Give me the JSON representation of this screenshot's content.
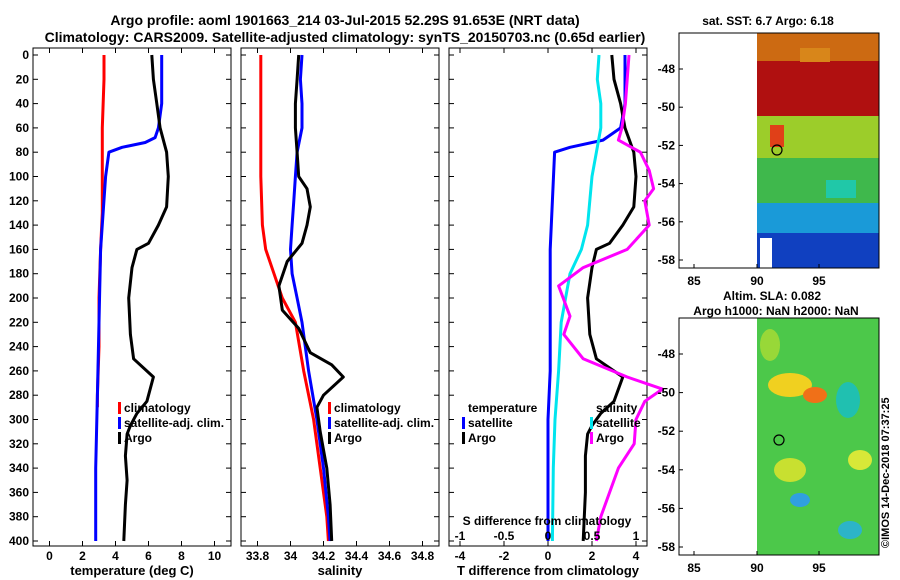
{
  "header": {
    "line1": "Argo profile: aoml 1901663_214 03-Jul-2015 52.29S 91.653E (NRT data)",
    "line2": "Climatology: CARS2009. Satellite-adjusted climatology: synTS_20150703.nc (0.65d earlier)"
  },
  "credit": "©IMOS 14-Dec-2018 07:37:25",
  "colors": {
    "red": "#ff0000",
    "blue": "#0000ff",
    "black": "#000000",
    "cyan": "#00e5ee",
    "magenta": "#ff00ff"
  },
  "chart_data": [
    {
      "type": "line",
      "name": "temperature",
      "xlabel": "temperature (deg C)",
      "xlim": [
        -1,
        11
      ],
      "xticks": [
        "0",
        "2",
        "4",
        "6",
        "8",
        "10"
      ],
      "ylim": [
        0,
        400
      ],
      "yticks": [
        "0",
        "20",
        "40",
        "60",
        "80",
        "100",
        "120",
        "140",
        "160",
        "180",
        "200",
        "220",
        "240",
        "260",
        "280",
        "300",
        "320",
        "340",
        "360",
        "380",
        "400"
      ],
      "legend": [
        "climatology",
        "satellite-adj. clim.",
        "Argo"
      ],
      "series": [
        {
          "name": "climatology",
          "color": "red",
          "points": [
            [
              3.3,
              0
            ],
            [
              3.3,
              20
            ],
            [
              3.2,
              60
            ],
            [
              3.2,
              100
            ],
            [
              3.2,
              130
            ],
            [
              3.1,
              160
            ],
            [
              3.0,
              200
            ],
            [
              3.0,
              240
            ],
            [
              2.9,
              280
            ],
            [
              2.9,
              290
            ]
          ]
        },
        {
          "name": "satellite-adj. clim.",
          "color": "blue",
          "points": [
            [
              6.8,
              0
            ],
            [
              6.8,
              20
            ],
            [
              6.8,
              40
            ],
            [
              6.6,
              60
            ],
            [
              6.4,
              68
            ],
            [
              5.8,
              72
            ],
            [
              4.4,
              76
            ],
            [
              3.6,
              80
            ],
            [
              3.4,
              100
            ],
            [
              3.1,
              160
            ],
            [
              3.0,
              220
            ],
            [
              2.9,
              280
            ],
            [
              2.8,
              340
            ],
            [
              2.8,
              400
            ]
          ]
        },
        {
          "name": "Argo",
          "color": "black",
          "points": [
            [
              6.2,
              0
            ],
            [
              6.3,
              20
            ],
            [
              6.5,
              40
            ],
            [
              6.7,
              60
            ],
            [
              7.1,
              80
            ],
            [
              7.2,
              100
            ],
            [
              7.1,
              125
            ],
            [
              6.6,
              140
            ],
            [
              6.0,
              155
            ],
            [
              5.3,
              160
            ],
            [
              5.0,
              175
            ],
            [
              4.8,
              200
            ],
            [
              4.9,
              230
            ],
            [
              5.1,
              250
            ],
            [
              6.3,
              265
            ],
            [
              5.9,
              285
            ],
            [
              5.3,
              295
            ],
            [
              4.9,
              305
            ],
            [
              4.7,
              312
            ],
            [
              4.6,
              330
            ],
            [
              4.7,
              350
            ],
            [
              4.6,
              370
            ],
            [
              4.5,
              400
            ]
          ]
        }
      ]
    },
    {
      "type": "line",
      "name": "salinity",
      "xlabel": "salinity",
      "xlim": [
        33.7,
        34.9
      ],
      "xticks": [
        "33.8",
        "34",
        "34.2",
        "34.4",
        "34.6",
        "34.8"
      ],
      "ylim": [
        0,
        400
      ],
      "legend": [
        "climatology",
        "satellite-adj. clim.",
        "Argo"
      ],
      "series": [
        {
          "name": "climatology",
          "color": "red",
          "points": [
            [
              33.82,
              0
            ],
            [
              33.82,
              40
            ],
            [
              33.82,
              100
            ],
            [
              33.83,
              140
            ],
            [
              33.85,
              160
            ],
            [
              33.9,
              180
            ],
            [
              33.95,
              200
            ],
            [
              34.03,
              220
            ],
            [
              34.08,
              260
            ],
            [
              34.14,
              300
            ],
            [
              34.18,
              340
            ],
            [
              34.22,
              380
            ],
            [
              34.23,
              400
            ]
          ]
        },
        {
          "name": "satellite-adj. clim.",
          "color": "blue",
          "points": [
            [
              34.07,
              0
            ],
            [
              34.06,
              20
            ],
            [
              34.07,
              40
            ],
            [
              34.07,
              60
            ],
            [
              34.04,
              80
            ],
            [
              34.03,
              100
            ],
            [
              34.02,
              120
            ],
            [
              34.01,
              140
            ],
            [
              34.0,
              160
            ],
            [
              34.01,
              180
            ],
            [
              34.04,
              200
            ],
            [
              34.07,
              220
            ],
            [
              34.11,
              260
            ],
            [
              34.16,
              300
            ],
            [
              34.2,
              340
            ],
            [
              34.23,
              380
            ],
            [
              34.24,
              400
            ]
          ]
        },
        {
          "name": "Argo",
          "color": "black",
          "points": [
            [
              34.05,
              0
            ],
            [
              34.04,
              20
            ],
            [
              34.03,
              40
            ],
            [
              34.03,
              60
            ],
            [
              34.04,
              80
            ],
            [
              34.05,
              100
            ],
            [
              34.1,
              110
            ],
            [
              34.12,
              125
            ],
            [
              34.1,
              140
            ],
            [
              34.07,
              155
            ],
            [
              33.98,
              170
            ],
            [
              33.93,
              190
            ],
            [
              33.95,
              210
            ],
            [
              34.05,
              225
            ],
            [
              34.12,
              245
            ],
            [
              34.25,
              255
            ],
            [
              34.32,
              265
            ],
            [
              34.2,
              280
            ],
            [
              34.16,
              290
            ],
            [
              34.18,
              310
            ],
            [
              34.22,
              340
            ],
            [
              34.24,
              370
            ],
            [
              34.25,
              400
            ]
          ]
        }
      ]
    },
    {
      "type": "line",
      "name": "difference from climatology",
      "xlabel": "T difference from climatology",
      "xlabel_top": "S difference from climatology",
      "xlim": [
        -4.5,
        4.5
      ],
      "xticks": [
        "-4",
        "-2",
        "0",
        "2",
        "4"
      ],
      "xticks_top": [
        "-1",
        "-0.5",
        "0",
        "0.5",
        "1"
      ],
      "ylim": [
        0,
        400
      ],
      "legend_left": [
        "temperature",
        "satellite",
        "Argo"
      ],
      "legend_right": [
        "salinity",
        "satellite",
        "Argo"
      ],
      "series": [
        {
          "name": "T satellite",
          "color": "blue",
          "points": [
            [
              3.5,
              0
            ],
            [
              3.5,
              40
            ],
            [
              3.3,
              60
            ],
            [
              2.5,
              70
            ],
            [
              1.0,
              76
            ],
            [
              0.3,
              80
            ],
            [
              0.2,
              120
            ],
            [
              0.1,
              160
            ],
            [
              0.1,
              200
            ],
            [
              0.1,
              260
            ],
            [
              0.0,
              300
            ],
            [
              0.0,
              340
            ],
            [
              0.0,
              400
            ]
          ]
        },
        {
          "name": "T Argo",
          "color": "black",
          "points": [
            [
              2.9,
              0
            ],
            [
              3.0,
              20
            ],
            [
              3.3,
              40
            ],
            [
              3.5,
              60
            ],
            [
              3.9,
              80
            ],
            [
              4.0,
              100
            ],
            [
              3.9,
              125
            ],
            [
              3.4,
              140
            ],
            [
              2.8,
              155
            ],
            [
              2.2,
              160
            ],
            [
              2.0,
              175
            ],
            [
              1.8,
              200
            ],
            [
              1.9,
              230
            ],
            [
              2.2,
              250
            ],
            [
              3.4,
              265
            ],
            [
              3.0,
              285
            ],
            [
              2.4,
              295
            ],
            [
              2.0,
              305
            ],
            [
              1.8,
              312
            ],
            [
              1.7,
              330
            ],
            [
              1.7,
              360
            ],
            [
              1.6,
              400
            ]
          ]
        },
        {
          "name": "S satellite",
          "color": "cyan",
          "points": [
            [
              0.58,
              0
            ],
            [
              0.56,
              20
            ],
            [
              0.6,
              40
            ],
            [
              0.6,
              60
            ],
            [
              0.55,
              80
            ],
            [
              0.5,
              100
            ],
            [
              0.45,
              140
            ],
            [
              0.38,
              160
            ],
            [
              0.25,
              180
            ],
            [
              0.2,
              200
            ],
            [
              0.15,
              220
            ],
            [
              0.12,
              260
            ],
            [
              0.08,
              300
            ],
            [
              0.06,
              340
            ],
            [
              0.05,
              400
            ]
          ]
        },
        {
          "name": "S Argo",
          "color": "magenta",
          "points": [
            [
              0.92,
              0
            ],
            [
              0.9,
              20
            ],
            [
              0.88,
              40
            ],
            [
              0.84,
              60
            ],
            [
              0.8,
              70
            ],
            [
              1.05,
              80
            ],
            [
              1.15,
              95
            ],
            [
              1.2,
              110
            ],
            [
              1.1,
              120
            ],
            [
              1.15,
              140
            ],
            [
              0.9,
              160
            ],
            [
              0.4,
              175
            ],
            [
              0.12,
              190
            ],
            [
              0.25,
              215
            ],
            [
              0.18,
              230
            ],
            [
              0.4,
              250
            ],
            [
              0.9,
              265
            ],
            [
              1.3,
              275
            ],
            [
              1.1,
              285
            ],
            [
              1.0,
              300
            ],
            [
              0.98,
              320
            ],
            [
              0.8,
              340
            ],
            [
              0.7,
              360
            ],
            [
              0.6,
              380
            ],
            [
              0.55,
              400
            ]
          ]
        }
      ]
    }
  ],
  "maps": [
    {
      "name": "sat-sst-map",
      "title": "sat. SST: 6.7 Argo: 6.18",
      "xticks": [
        "85",
        "90",
        "95"
      ],
      "yticks": [
        "-48",
        "-50",
        "-52",
        "-54",
        "-56",
        "-58"
      ]
    },
    {
      "name": "altim-sla-map",
      "title": "Altim. SLA: 0.082",
      "subtitle": "Argo h1000: NaN h2000: NaN",
      "xticks": [
        "85",
        "90",
        "95"
      ],
      "yticks": [
        "-48",
        "-50",
        "-52",
        "-54",
        "-56",
        "-58"
      ]
    }
  ]
}
